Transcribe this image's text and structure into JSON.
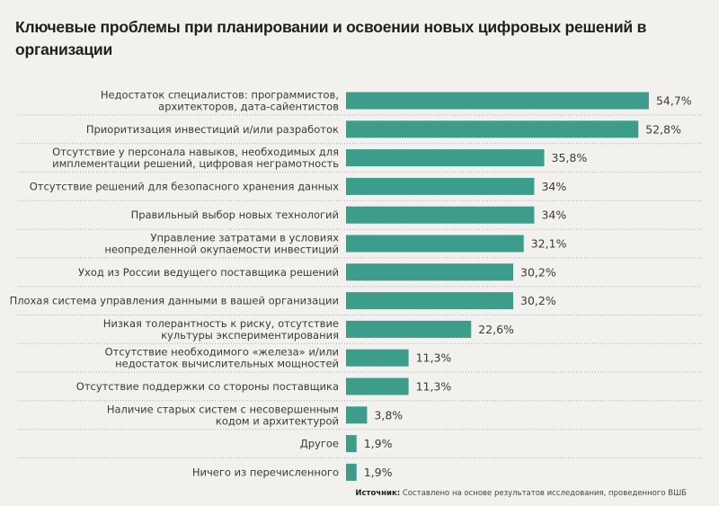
{
  "chart_data": {
    "type": "bar",
    "orientation": "horizontal",
    "title": "Ключевые проблемы при планировании и освоении новых цифровых решений в организации",
    "categories": [
      [
        "Недостаток специалистов: программистов,",
        "архитекторов, дата-сайентистов"
      ],
      [
        "Приоритизация инвестиций и/или разработок"
      ],
      [
        "Отсутствие у персонала навыков, необходимых для",
        "имплементации решений, цифровая неграмотность"
      ],
      [
        "Отсутствие решений для безопасного хранения данных"
      ],
      [
        "Правильный выбор новых технологий"
      ],
      [
        "Управление затратами в условиях",
        "неопределенной окупаемости инвестиций"
      ],
      [
        "Уход из России ведущего поставщика решений"
      ],
      [
        "Плохая система управления данными в вашей организации"
      ],
      [
        "Низкая толерантность к риску, отсутствие",
        "культуры экспериментирования"
      ],
      [
        "Отсутствие необходимого «железа» и/или",
        "недостаток вычислительных мощностей"
      ],
      [
        "Отсутствие поддержки со стороны поставщика"
      ],
      [
        "Наличие старых систем с несовершенным",
        "кодом и архитектурой"
      ],
      [
        "Другое"
      ],
      [
        "Ничего из перечисленного"
      ]
    ],
    "values": [
      54.7,
      52.8,
      35.8,
      34,
      34,
      32.1,
      30.2,
      30.2,
      22.6,
      11.3,
      11.3,
      3.8,
      1.9,
      1.9
    ],
    "value_labels": [
      "54,7%",
      "52,8%",
      "35,8%",
      "34%",
      "34%",
      "32,1%",
      "30,2%",
      "30,2%",
      "22,6%",
      "11,3%",
      "11,3%",
      "3,8%",
      "1,9%",
      "1,9%"
    ],
    "unit": "%",
    "bar_color": "#3a9e8a",
    "grid": false,
    "row_separators": "dotted"
  },
  "source": {
    "label": "Источник:",
    "text": "Составлено на основе результатов исследования, проведенного ВШБ"
  }
}
